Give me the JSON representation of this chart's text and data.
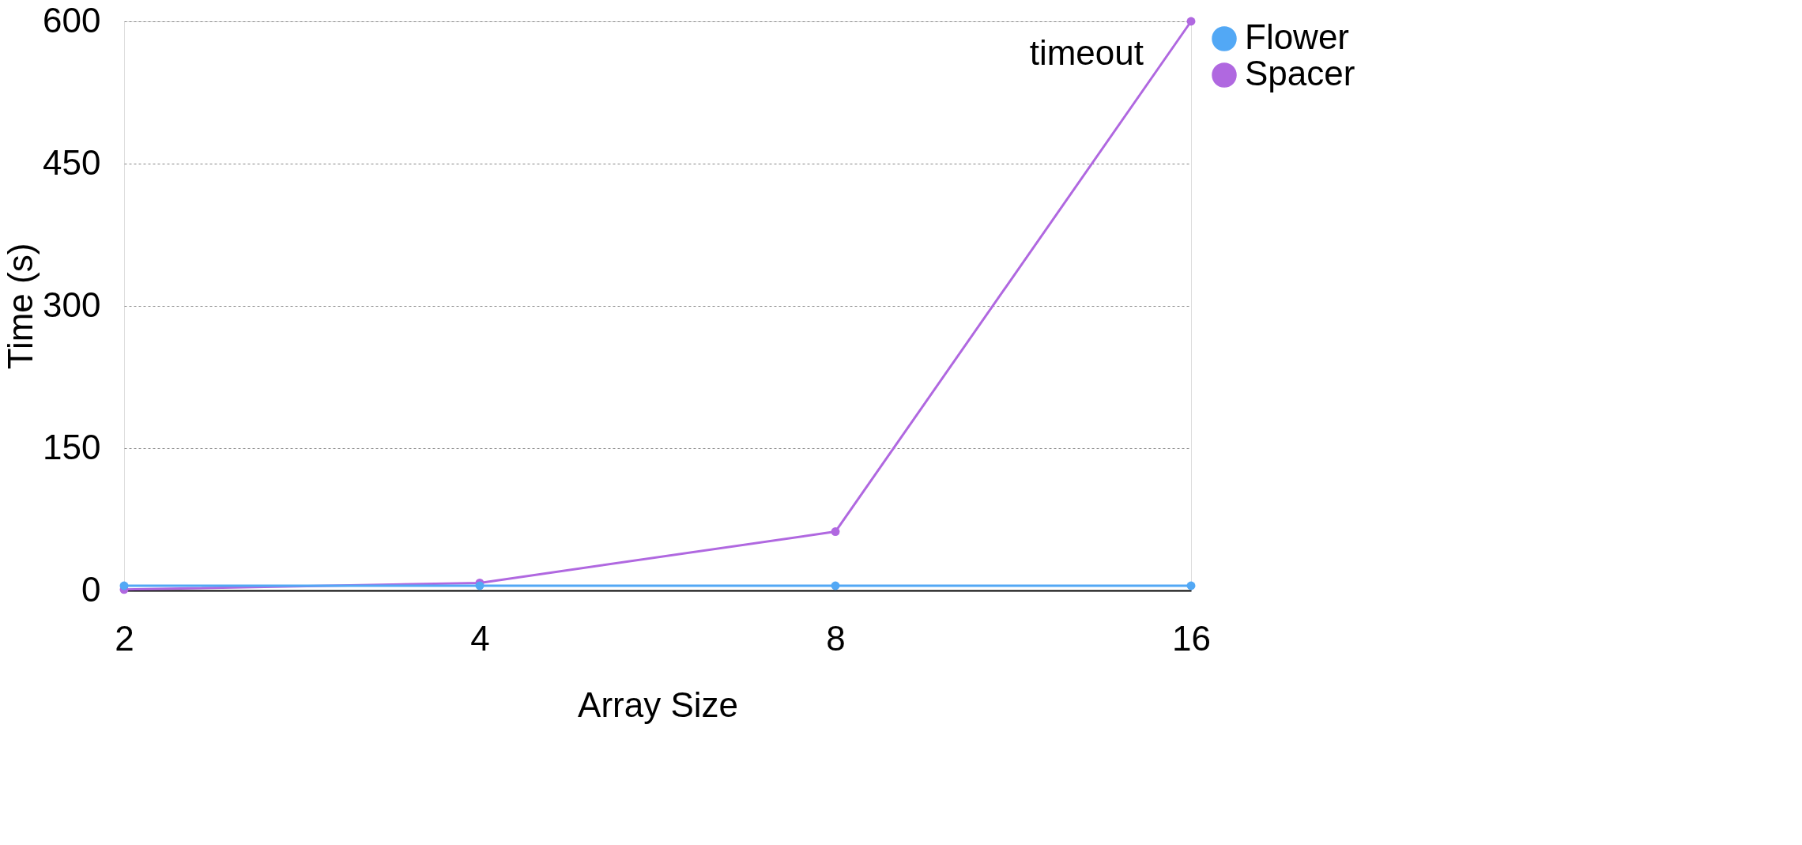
{
  "chart_data": {
    "type": "line",
    "xlabel": "Array Size",
    "ylabel": "Time (s)",
    "categories": [
      "2",
      "4",
      "8",
      "16"
    ],
    "series": [
      {
        "name": "Flower",
        "color": "#52a8f5",
        "values": [
          5,
          5,
          5,
          5
        ]
      },
      {
        "name": "Spacer",
        "color": "#b068e0",
        "values": [
          1,
          8,
          62,
          600
        ]
      }
    ],
    "ylim": [
      0,
      600
    ],
    "yticks": [
      0,
      150,
      300,
      450,
      600
    ],
    "grid": "y",
    "marker": "circle",
    "legend": "top right",
    "annotations": [
      "timeout"
    ]
  }
}
